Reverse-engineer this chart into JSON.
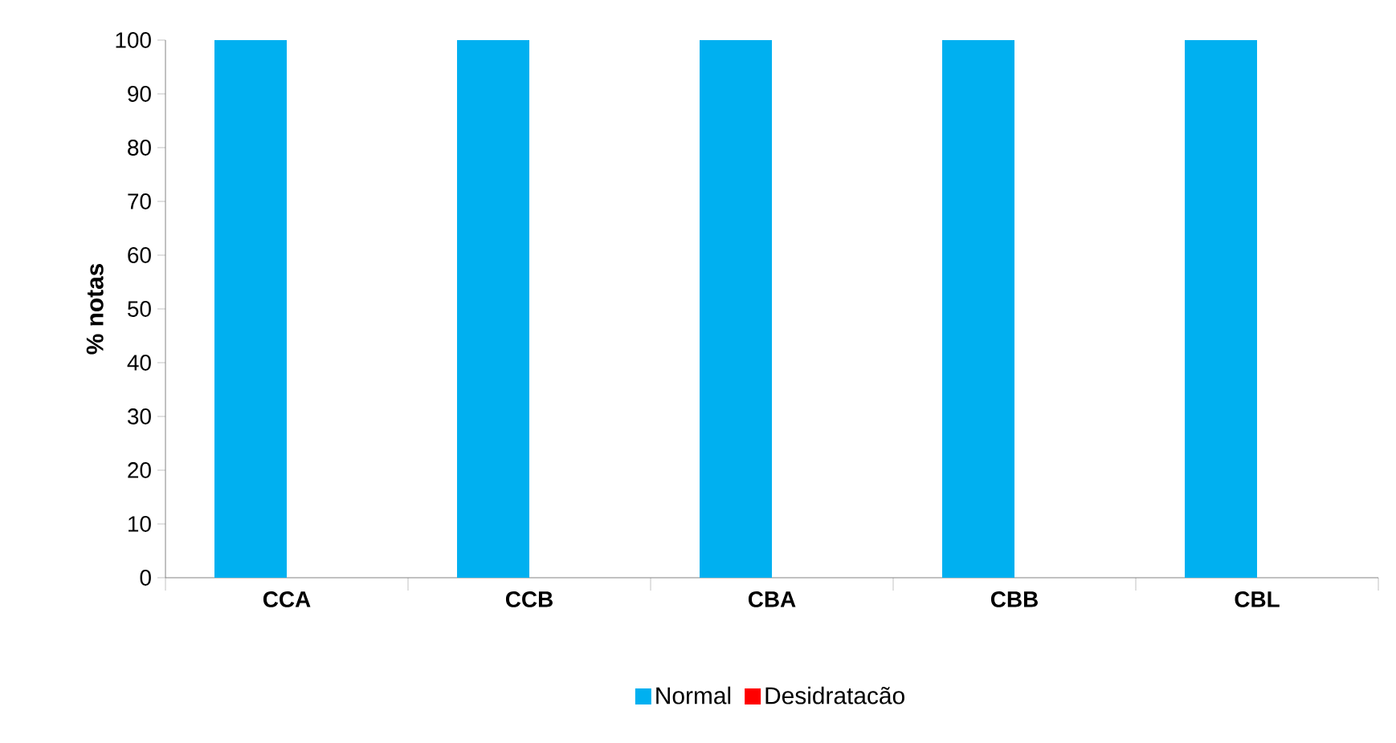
{
  "chart_data": {
    "type": "bar",
    "ylabel": "% notas",
    "categories": [
      "CCA",
      "CCB",
      "CBA",
      "CBB",
      "CBL"
    ],
    "series": [
      {
        "name": "Normal",
        "color": "#00b0f0",
        "values": [
          100,
          100,
          100,
          100,
          100
        ]
      },
      {
        "name": "Desidratacão",
        "color": "#ff0000",
        "values": [
          0,
          0,
          0,
          0,
          0
        ]
      }
    ],
    "ylim": [
      0,
      100
    ],
    "yticks": [
      0,
      10,
      20,
      30,
      40,
      50,
      60,
      70,
      80,
      90,
      100
    ],
    "grid": false,
    "legend": "bottom"
  }
}
